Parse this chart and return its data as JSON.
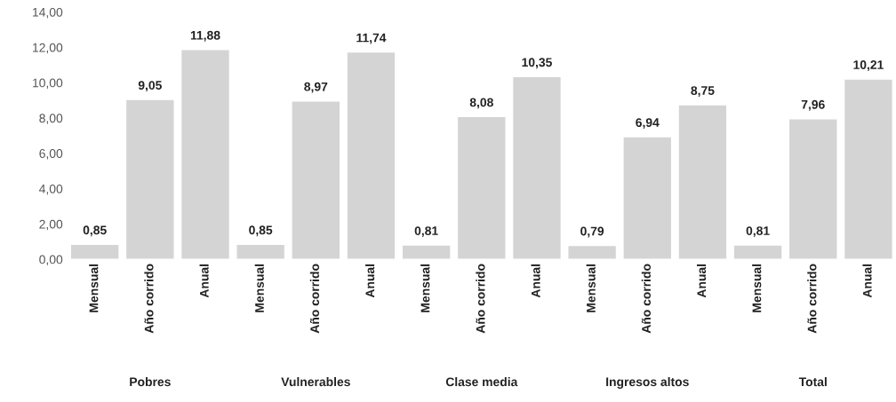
{
  "chart_data": {
    "type": "bar",
    "categories": [
      "Mensual",
      "Año corrido",
      "Anual",
      "Mensual",
      "Año corrido",
      "Anual",
      "Mensual",
      "Año corrido",
      "Anual",
      "Mensual",
      "Año corrido",
      "Anual",
      "Mensual",
      "Año corrido",
      "Anual"
    ],
    "values": [
      0.85,
      9.05,
      11.88,
      0.85,
      8.97,
      11.74,
      0.81,
      8.08,
      10.35,
      0.79,
      6.94,
      8.75,
      0.81,
      7.96,
      10.21
    ],
    "value_labels": [
      "0,85",
      "9,05",
      "11,88",
      "0,85",
      "8,97",
      "11,74",
      "0,81",
      "8,08",
      "10,35",
      "0,79",
      "6,94",
      "8,75",
      "0,81",
      "7,96",
      "10,21"
    ],
    "color": "#d4d4d4",
    "ylim": [
      0,
      14
    ],
    "yticks": [
      {
        "value": 0,
        "label": "0,00"
      },
      {
        "value": 2,
        "label": "2,00"
      },
      {
        "value": 4,
        "label": "4,00"
      },
      {
        "value": 6,
        "label": "6,00"
      },
      {
        "value": 8,
        "label": "8,00"
      },
      {
        "value": 10,
        "label": "10,00"
      },
      {
        "value": 12,
        "label": "12,00"
      },
      {
        "value": 14,
        "label": "14,00"
      }
    ],
    "annotations": [
      "Pobres",
      "Vulnerables",
      "Clase media",
      "Ingresos altos",
      "Total"
    ],
    "grid": false,
    "legend": false
  }
}
